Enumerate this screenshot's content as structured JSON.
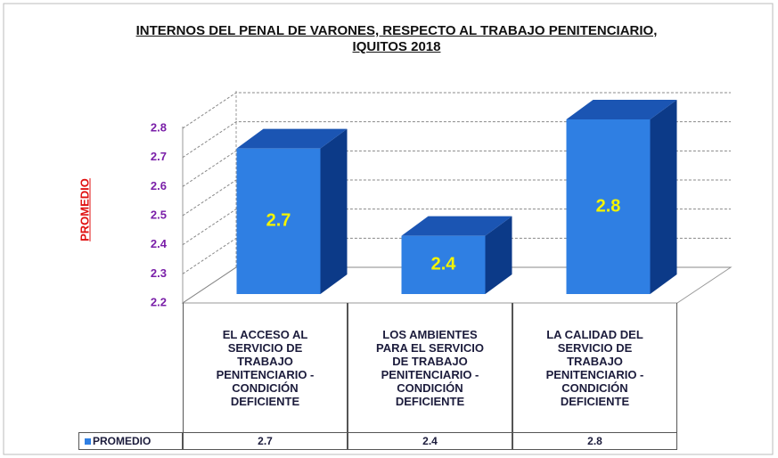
{
  "chart_data": {
    "type": "bar3d",
    "title": "INTERNOS DEL PENAL DE VARONES, RESPECTO AL TRABAJO PENITENCIARIO, IQUITOS 2018",
    "ylabel": "PROMEDIO",
    "categories": [
      "EL ACCESO AL SERVICIO DE TRABAJO PENITENCIARIO - CONDICIÓN DEFICIENTE",
      "LOS AMBIENTES PARA EL SERVICIO DE TRABAJO PENITENCIARIO - CONDICIÓN DEFICIENTE",
      "LA CALIDAD DEL SERVICIO DE TRABAJO PENITENCIARIO - CONDICIÓN DEFICIENTE"
    ],
    "series": [
      {
        "name": "PROMEDIO",
        "color": "#2f7fe3",
        "values": [
          2.7,
          2.4,
          2.8
        ]
      }
    ],
    "ylim": [
      2.2,
      2.8
    ],
    "yticks": [
      2.2,
      2.3,
      2.4,
      2.5,
      2.6,
      2.7,
      2.8
    ],
    "grid": true,
    "data_table": true
  }
}
